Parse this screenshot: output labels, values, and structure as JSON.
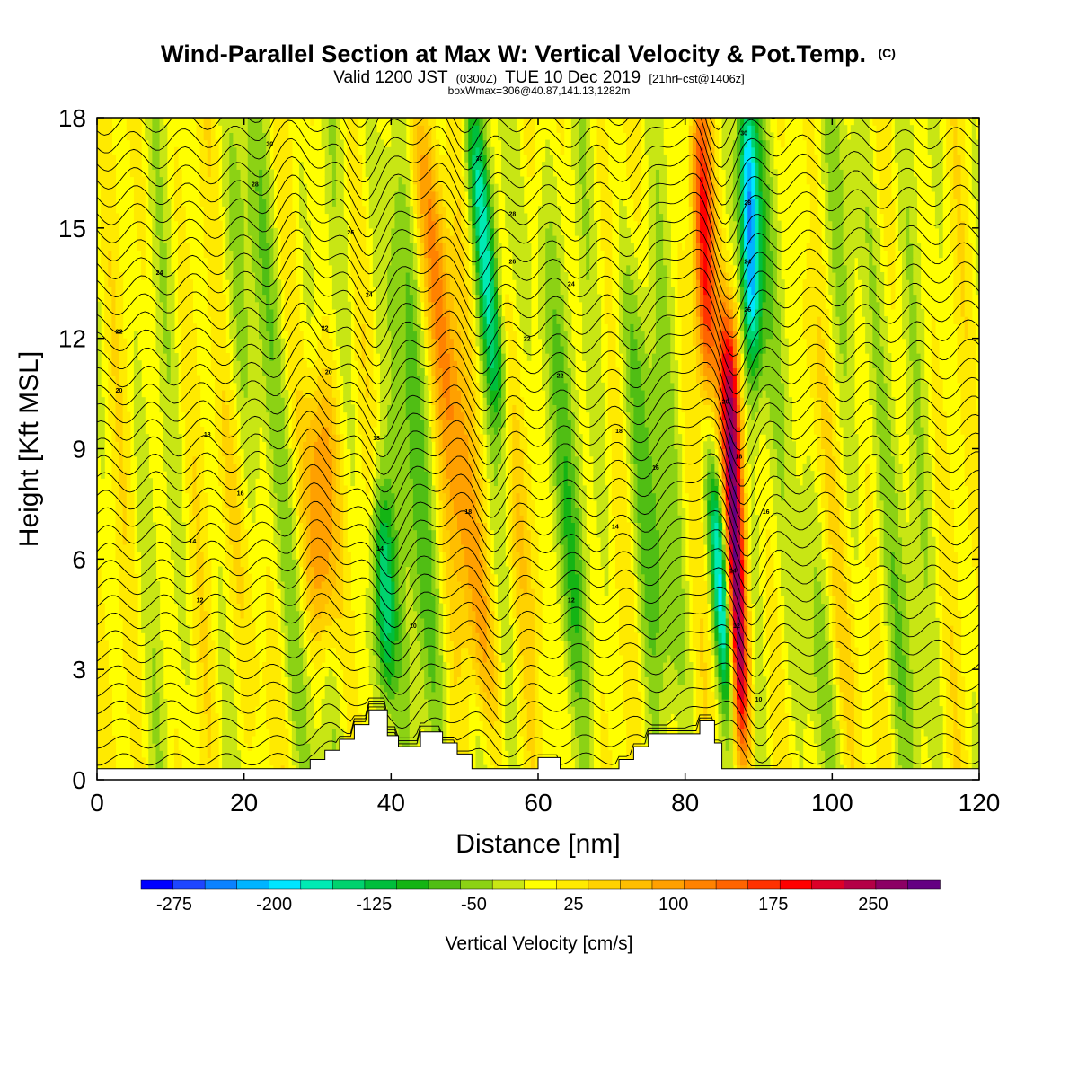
{
  "chart_data": {
    "type": "heatmap",
    "title": "Wind-Parallel Section at Max W: Vertical Velocity & Pot.Temp.",
    "title_mark": "(C)",
    "subtitle_prefix": "Valid 1200 JST",
    "subtitle_utc": "(0300Z)",
    "subtitle_date": "TUE 10 Dec 2019",
    "subtitle_fcst": "[21hrFcst@1406z]",
    "subtitle2": "boxWmax=306@40.87,141.13,1282m",
    "xlabel": "Distance [nm]",
    "ylabel": "Height [Kft MSL]",
    "xlim": [
      0,
      120
    ],
    "ylim": [
      0,
      18
    ],
    "x_ticks": [
      0,
      20,
      40,
      60,
      80,
      100,
      120
    ],
    "y_ticks": [
      0,
      3,
      6,
      9,
      12,
      15,
      18
    ],
    "colorbar": {
      "label": "Vertical Velocity [cm/s]",
      "min": -300,
      "max": 300,
      "step": 25,
      "tick_labels": [
        "-275",
        "-200",
        "-125",
        "-50",
        "25",
        "100",
        "175",
        "250"
      ],
      "tick_values": [
        -275,
        -200,
        -125,
        -50,
        25,
        100,
        175,
        250
      ],
      "colors": [
        "#0000ff",
        "#1e46ff",
        "#0a82ff",
        "#00b4ff",
        "#00e6ff",
        "#00eab4",
        "#00d26e",
        "#00be3c",
        "#14b414",
        "#50be14",
        "#8cd214",
        "#c8e614",
        "#ffff00",
        "#ffea00",
        "#ffd200",
        "#ffbe00",
        "#ffa000",
        "#ff8200",
        "#ff6400",
        "#ff3200",
        "#ff0000",
        "#dc0028",
        "#b40046",
        "#8c0064",
        "#640082"
      ]
    },
    "updraft_bands": [
      {
        "x": 30.5,
        "z_min": 4.0,
        "z_max": 10.5,
        "w": 160
      },
      {
        "x": 48.5,
        "z_min": 2.0,
        "z_max": 18,
        "w": 110
      },
      {
        "x": 82.5,
        "z_min": 11.0,
        "z_max": 18,
        "w": 190
      },
      {
        "x": 86.8,
        "z_min": 1.0,
        "z_max": 12.5,
        "w": 300
      }
    ],
    "downdraft_bands": [
      {
        "x": 39.0,
        "z_min": 2.5,
        "z_max": 7.5,
        "w": -200
      },
      {
        "x": 53.0,
        "z_min": 10.0,
        "z_max": 18,
        "w": -170
      },
      {
        "x": 85.0,
        "z_min": 2.0,
        "z_max": 8.0,
        "w": -230
      },
      {
        "x": 88.8,
        "z_min": 11.5,
        "z_max": 18,
        "w": -240
      }
    ],
    "terrain_x": [
      0,
      29,
      29,
      31,
      31,
      33,
      33,
      35,
      35,
      37,
      37,
      39.5,
      39.5,
      41,
      41,
      44,
      44,
      47,
      47,
      49,
      49,
      51,
      51,
      60,
      60,
      63,
      63,
      71,
      71,
      73,
      73,
      75,
      75,
      79,
      79,
      82,
      82,
      84,
      84,
      85,
      85,
      120
    ],
    "terrain_z": [
      0.3,
      0.3,
      0.55,
      0.55,
      0.8,
      0.8,
      1.1,
      1.1,
      1.5,
      1.5,
      1.9,
      1.9,
      1.2,
      1.2,
      0.9,
      0.9,
      1.3,
      1.3,
      1.0,
      1.0,
      0.7,
      0.7,
      0.3,
      0.3,
      0.6,
      0.6,
      0.3,
      0.3,
      0.55,
      0.55,
      0.9,
      0.9,
      1.25,
      1.25,
      1.25,
      1.25,
      1.6,
      1.6,
      1.0,
      1.0,
      0.3,
      0.3
    ],
    "theta_label_samples": [
      {
        "x": 23.5,
        "z": 17.3,
        "label": "30"
      },
      {
        "x": 21.5,
        "z": 16.2,
        "label": "28"
      },
      {
        "x": 34.5,
        "z": 14.9,
        "label": "26"
      },
      {
        "x": 8.5,
        "z": 13.8,
        "label": "24"
      },
      {
        "x": 37.0,
        "z": 13.2,
        "label": "24"
      },
      {
        "x": 3.0,
        "z": 12.2,
        "label": "22"
      },
      {
        "x": 31.0,
        "z": 12.3,
        "label": "22"
      },
      {
        "x": 3.0,
        "z": 10.6,
        "label": "20"
      },
      {
        "x": 31.5,
        "z": 11.1,
        "label": "20"
      },
      {
        "x": 15.0,
        "z": 9.4,
        "label": "18"
      },
      {
        "x": 38.0,
        "z": 9.3,
        "label": "18"
      },
      {
        "x": 19.5,
        "z": 7.8,
        "label": "16"
      },
      {
        "x": 13.0,
        "z": 6.5,
        "label": "14"
      },
      {
        "x": 38.5,
        "z": 6.3,
        "label": "14"
      },
      {
        "x": 14.0,
        "z": 4.9,
        "label": "12"
      },
      {
        "x": 43.0,
        "z": 4.2,
        "label": "10"
      },
      {
        "x": 52.0,
        "z": 16.9,
        "label": "30"
      },
      {
        "x": 56.5,
        "z": 15.4,
        "label": "28"
      },
      {
        "x": 56.5,
        "z": 14.1,
        "label": "26"
      },
      {
        "x": 64.5,
        "z": 13.5,
        "label": "24"
      },
      {
        "x": 58.5,
        "z": 12.0,
        "label": "22"
      },
      {
        "x": 63.0,
        "z": 11.0,
        "label": "22"
      },
      {
        "x": 71.0,
        "z": 9.5,
        "label": "18"
      },
      {
        "x": 76.0,
        "z": 8.5,
        "label": "16"
      },
      {
        "x": 50.5,
        "z": 7.3,
        "label": "18"
      },
      {
        "x": 70.5,
        "z": 6.9,
        "label": "14"
      },
      {
        "x": 64.5,
        "z": 4.9,
        "label": "12"
      },
      {
        "x": 88.0,
        "z": 17.6,
        "label": "30"
      },
      {
        "x": 88.5,
        "z": 15.7,
        "label": "28"
      },
      {
        "x": 88.5,
        "z": 14.1,
        "label": "24"
      },
      {
        "x": 88.5,
        "z": 12.8,
        "label": "26"
      },
      {
        "x": 85.5,
        "z": 10.3,
        "label": "20"
      },
      {
        "x": 87.3,
        "z": 8.8,
        "label": "18"
      },
      {
        "x": 91.0,
        "z": 7.3,
        "label": "16"
      },
      {
        "x": 86.5,
        "z": 5.7,
        "label": "14"
      },
      {
        "x": 87.0,
        "z": 4.2,
        "label": "12"
      },
      {
        "x": 90.0,
        "z": 2.2,
        "label": "10"
      }
    ]
  }
}
